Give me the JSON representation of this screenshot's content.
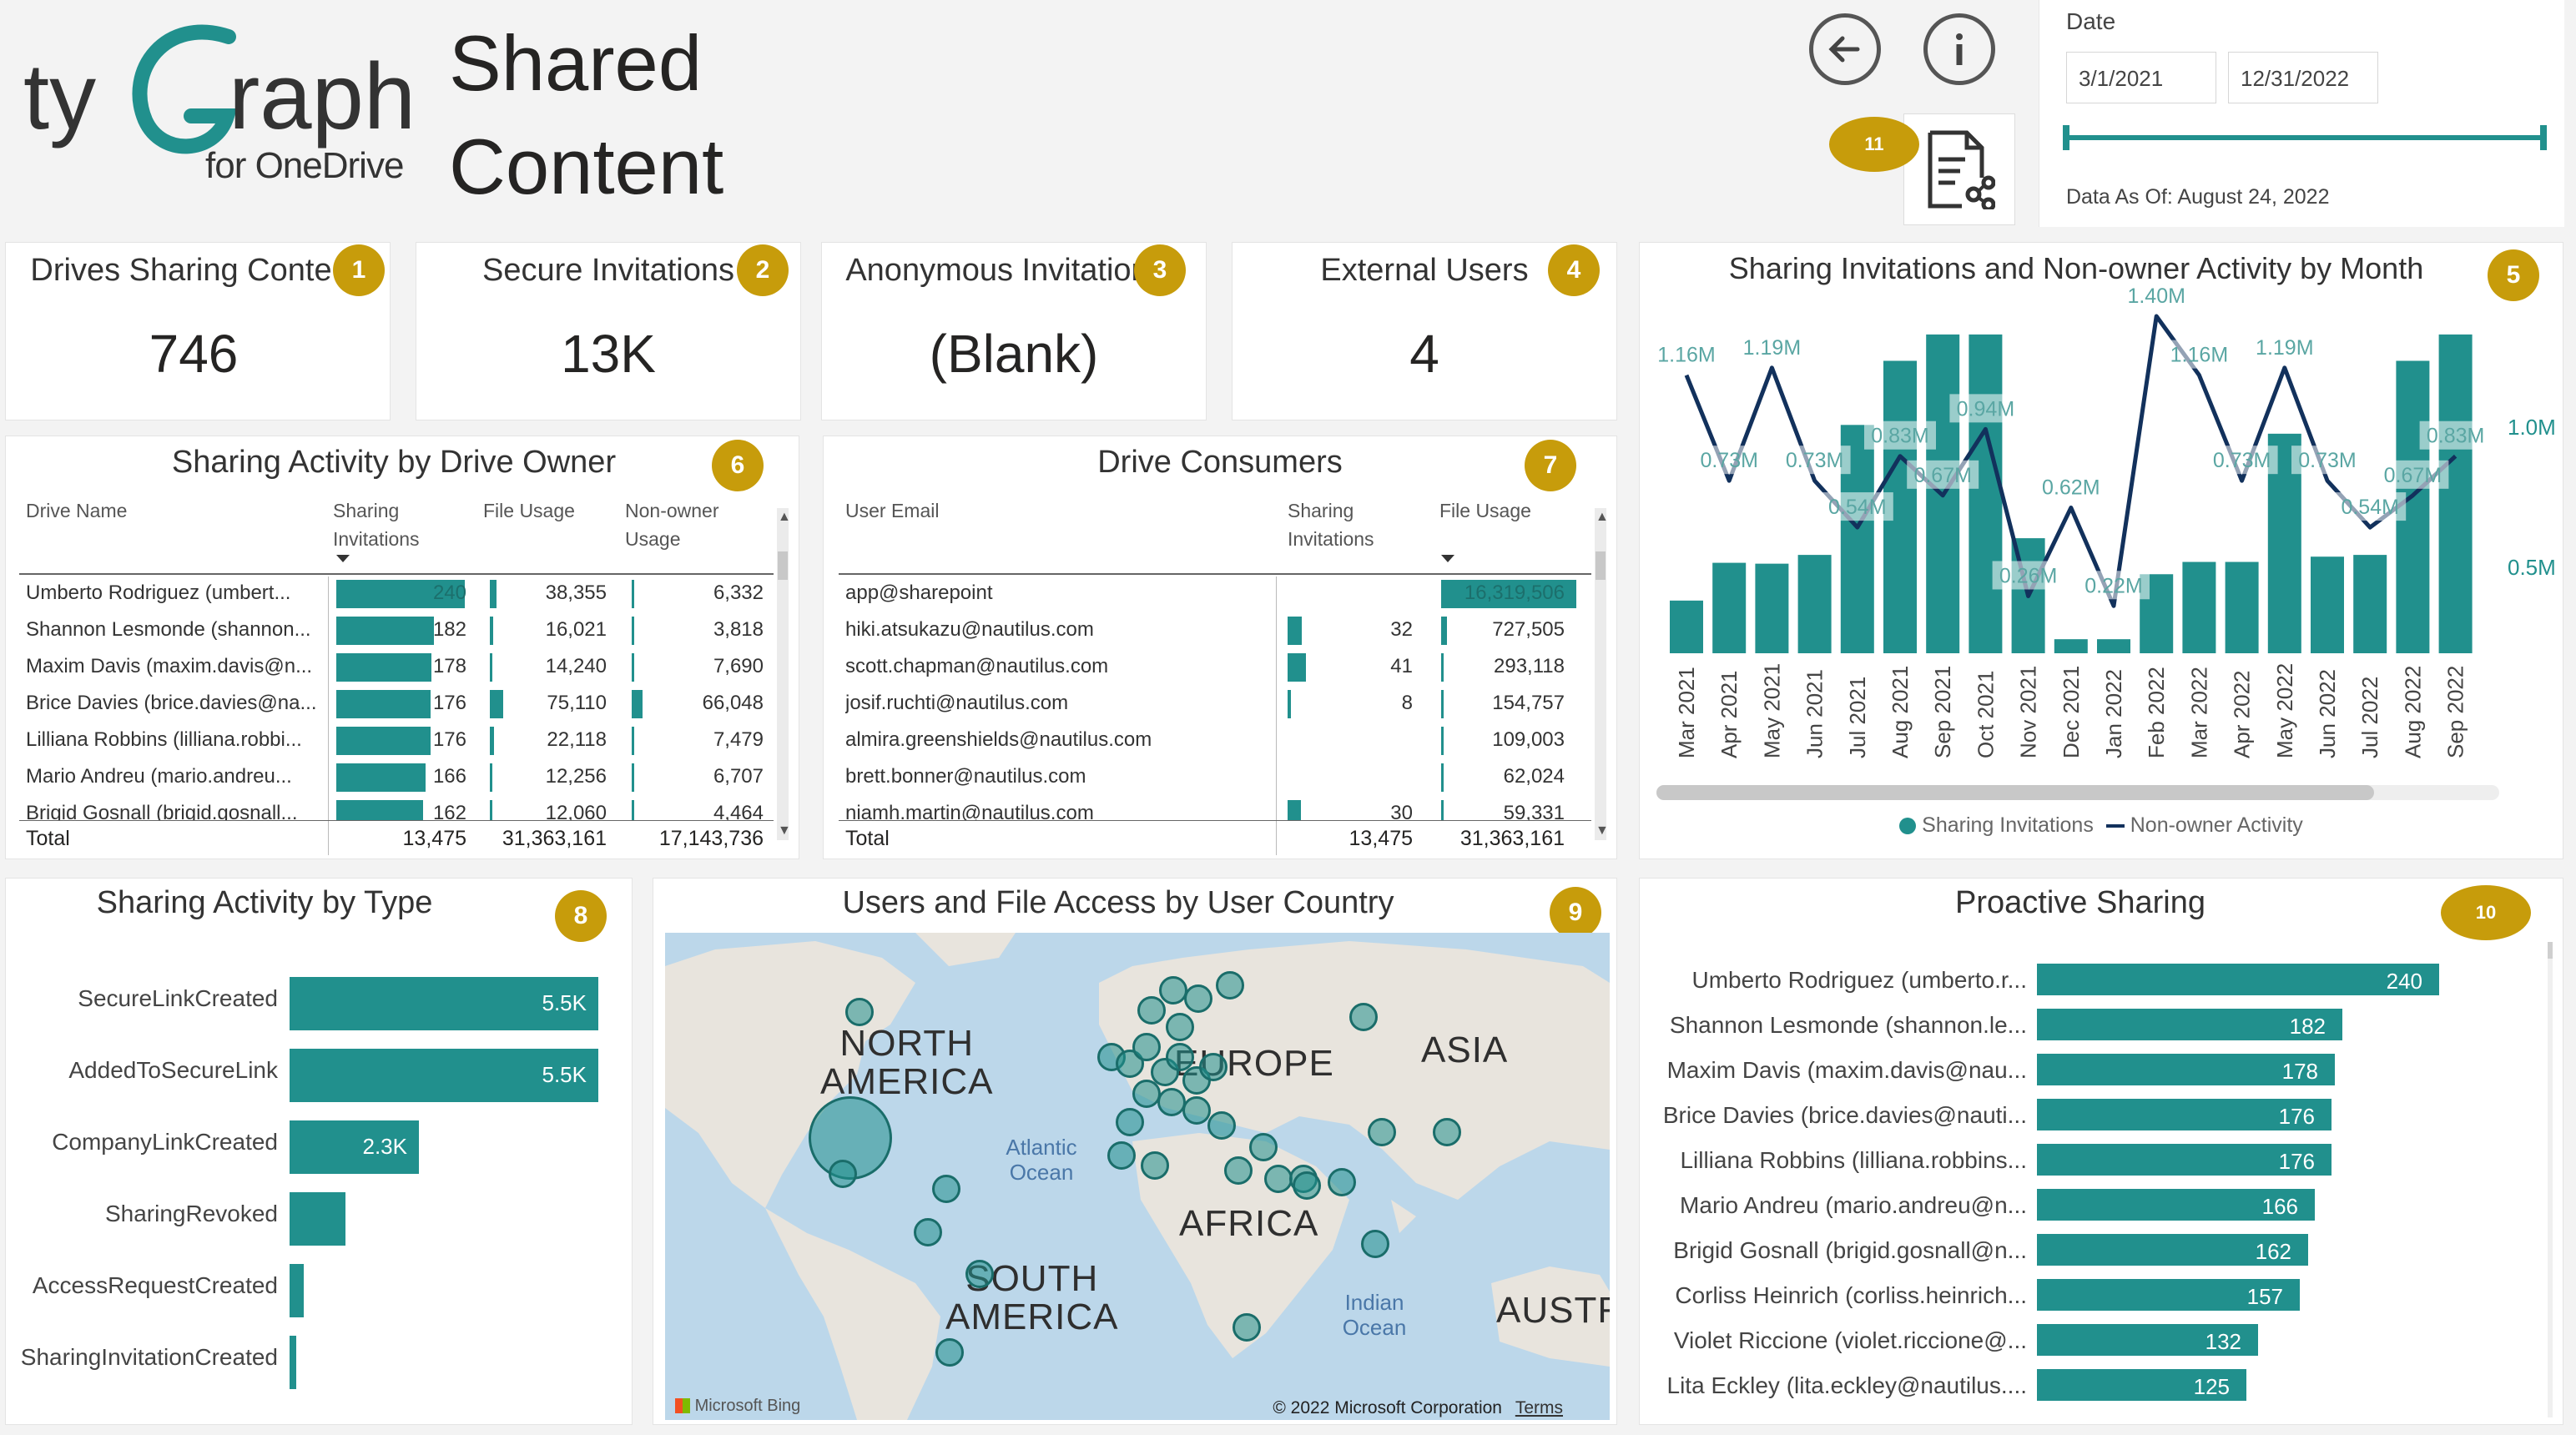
{
  "header": {
    "logo_main": "tyGraph",
    "logo_sub": "for OneDrive",
    "title_line1": "Shared",
    "title_line2": "Content",
    "report_badge": "11"
  },
  "date_slicer": {
    "label": "Date",
    "start": "3/1/2021",
    "end": "12/31/2022",
    "as_of": "Data As Of: August 24, 2022"
  },
  "kpis": [
    {
      "title": "Drives Sharing Conte",
      "value": "746",
      "badge": "1"
    },
    {
      "title": "Secure Invitations",
      "value": "13K",
      "badge": "2"
    },
    {
      "title": "Anonymous Invitation",
      "value": "(Blank)",
      "badge": "3"
    },
    {
      "title": "External Users",
      "value": "4",
      "badge": "4"
    }
  ],
  "monthly_chart": {
    "title": "Sharing Invitations and Non-owner Activity by Month",
    "badge": "5",
    "legend_bars": "Sharing Invitations",
    "legend_line": "Non-owner Activity",
    "y2_ticks": [
      "1.0M",
      "0.5M"
    ],
    "colors": {
      "bar": "#21908d",
      "line": "#12315c"
    },
    "chart_data": {
      "type": "bar",
      "categories": [
        "Mar 2021",
        "Apr 2021",
        "May 2021",
        "Jun 2021",
        "Jul 2021",
        "Aug 2021",
        "Sep 2021",
        "Oct 2021",
        "Nov 2021",
        "Dec 2021",
        "Jan 2022",
        "Feb 2022",
        "Mar 2022",
        "Apr 2022",
        "May 2022",
        "Jun 2022",
        "Jul 2022",
        "Aug 2022",
        "Sep 2022"
      ],
      "series": [
        {
          "name": "Sharing Invitations",
          "type": "bar",
          "values": [
            60,
            103,
            102,
            112,
            260,
            333,
            363,
            363,
            131,
            16,
            16,
            90,
            104,
            104,
            250,
            110,
            112,
            333,
            363
          ]
        },
        {
          "name": "Non-owner Activity",
          "type": "line",
          "values": [
            1.16,
            0.73,
            1.19,
            0.73,
            0.54,
            0.83,
            0.67,
            0.94,
            0.26,
            0.62,
            0.22,
            1.4,
            1.16,
            0.73,
            1.19,
            0.73,
            0.54,
            0.67,
            0.83
          ]
        }
      ],
      "line_labels": [
        "1.16M",
        "0.73M",
        "1.19M",
        "0.73M",
        "0.54M",
        "0.83M",
        "0.67M",
        "0.94M",
        "0.26M",
        "0.62M",
        "0.22M",
        "1.40M",
        "1.16M",
        "0.73M",
        "1.19M",
        "0.73M",
        "0.54M",
        "0.67M",
        "0.83M"
      ]
    }
  },
  "drive_owner": {
    "title": "Sharing Activity by Drive Owner",
    "badge": "6",
    "columns": [
      "Drive Name",
      "Sharing Invitations",
      "File Usage",
      "Non-owner Usage"
    ],
    "rows": [
      {
        "name": "Umberto Rodriguez (umbert...",
        "invites": 240,
        "invites_label": "240",
        "file": 38355,
        "file_label": "38,355",
        "nonowner": 6332,
        "nonowner_label": "6,332"
      },
      {
        "name": "Shannon Lesmonde (shannon...",
        "invites": 182,
        "invites_label": "182",
        "file": 16021,
        "file_label": "16,021",
        "nonowner": 3818,
        "nonowner_label": "3,818"
      },
      {
        "name": "Maxim Davis (maxim.davis@n...",
        "invites": 178,
        "invites_label": "178",
        "file": 14240,
        "file_label": "14,240",
        "nonowner": 7690,
        "nonowner_label": "7,690"
      },
      {
        "name": "Brice Davies (brice.davies@na...",
        "invites": 176,
        "invites_label": "176",
        "file": 75110,
        "file_label": "75,110",
        "nonowner": 66048,
        "nonowner_label": "66,048"
      },
      {
        "name": "Lilliana Robbins (lilliana.robbi...",
        "invites": 176,
        "invites_label": "176",
        "file": 22118,
        "file_label": "22,118",
        "nonowner": 7479,
        "nonowner_label": "7,479"
      },
      {
        "name": "Mario Andreu (mario.andreu...",
        "invites": 166,
        "invites_label": "166",
        "file": 12256,
        "file_label": "12,256",
        "nonowner": 6707,
        "nonowner_label": "6,707"
      },
      {
        "name": "Brigid Gosnall (brigid.gosnall...",
        "invites": 162,
        "invites_label": "162",
        "file": 12060,
        "file_label": "12,060",
        "nonowner": 4464,
        "nonowner_label": "4,464"
      }
    ],
    "total": {
      "label": "Total",
      "invites": "13,475",
      "file": "31,363,161",
      "nonowner": "17,143,736"
    }
  },
  "consumers": {
    "title": "Drive Consumers",
    "badge": "7",
    "columns": [
      "User Email",
      "Sharing Invitations",
      "File Usage"
    ],
    "rows": [
      {
        "email": "app@sharepoint",
        "invites": 0,
        "invites_label": "",
        "file": 16319506,
        "file_label": "16,319,506"
      },
      {
        "email": "hiki.atsukazu@nautilus.com",
        "invites": 32,
        "invites_label": "32",
        "file": 727505,
        "file_label": "727,505"
      },
      {
        "email": "scott.chapman@nautilus.com",
        "invites": 41,
        "invites_label": "41",
        "file": 293118,
        "file_label": "293,118"
      },
      {
        "email": "josif.ruchti@nautilus.com",
        "invites": 8,
        "invites_label": "8",
        "file": 154757,
        "file_label": "154,757"
      },
      {
        "email": "almira.greenshields@nautilus.com",
        "invites": 0,
        "invites_label": "",
        "file": 109003,
        "file_label": "109,003"
      },
      {
        "email": "brett.bonner@nautilus.com",
        "invites": 0,
        "invites_label": "",
        "file": 62024,
        "file_label": "62,024"
      },
      {
        "email": "niamh.martin@nautilus.com",
        "invites": 30,
        "invites_label": "30",
        "file": 59331,
        "file_label": "59,331"
      }
    ],
    "total": {
      "label": "Total",
      "invites": "13,475",
      "file": "31,363,161"
    }
  },
  "by_type": {
    "title": "Sharing Activity by Type",
    "badge": "8",
    "chart_data": {
      "type": "bar",
      "categories": [
        "SecureLinkCreated",
        "AddedToSecureLink",
        "CompanyLinkCreated",
        "SharingRevoked",
        "AccessRequestCreated",
        "SharingInvitationCreated"
      ],
      "values": [
        5.5,
        5.5,
        2.3,
        1.0,
        0.25,
        0.1
      ],
      "value_labels": [
        "5.5K",
        "5.5K",
        "2.3K",
        "",
        "",
        ""
      ]
    }
  },
  "map": {
    "title": "Users and File Access by User Country",
    "badge": "9",
    "labels": {
      "na1": "NORTH",
      "na2": "AMERICA",
      "eu": "EUROPE",
      "asia": "ASIA",
      "africa": "AFRICA",
      "sa1": "SOUTH",
      "sa2": "AMERICA",
      "aus": "AUSTR"
    },
    "oceans": {
      "atlantic": "Atlantic Ocean",
      "indian": "Indian Ocean"
    },
    "bing": "Microsoft Bing",
    "copyright": "© 2022 Microsoft Corporation",
    "terms": "Terms"
  },
  "proactive": {
    "title": "Proactive Sharing",
    "badge": "10",
    "chart_data": {
      "type": "bar",
      "categories": [
        "Umberto Rodriguez (umberto.r...",
        "Shannon Lesmonde (shannon.le...",
        "Maxim Davis (maxim.davis@nau...",
        "Brice Davies (brice.davies@nauti...",
        "Lilliana Robbins (lilliana.robbins...",
        "Mario Andreu (mario.andreu@n...",
        "Brigid Gosnall (brigid.gosnall@n...",
        "Corliss Heinrich (corliss.heinrich...",
        "Violet Riccione (violet.riccione@...",
        "Lita Eckley (lita.eckley@nautilus...."
      ],
      "values": [
        240,
        182,
        178,
        176,
        176,
        166,
        162,
        157,
        132,
        125
      ]
    }
  }
}
